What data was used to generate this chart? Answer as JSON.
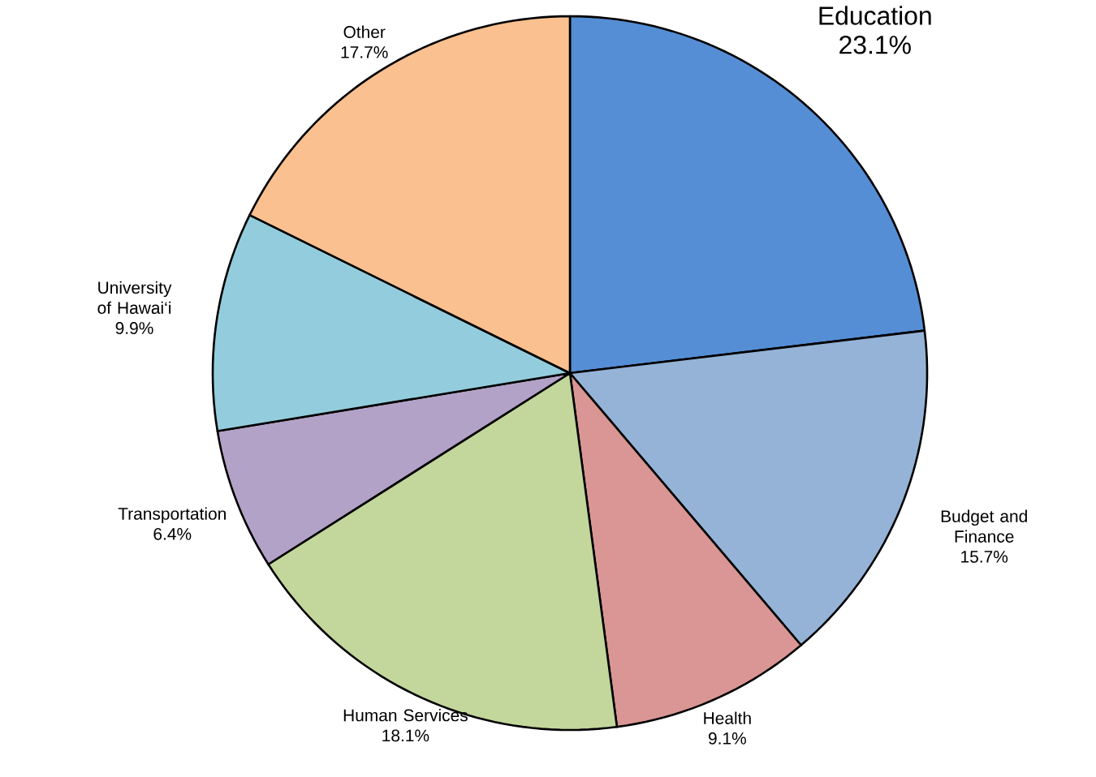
{
  "chart_data": {
    "type": "pie",
    "categories": [
      "Education",
      "Budget and Finance",
      "Health",
      "Human Services",
      "Transportation",
      "University of Hawai‘i",
      "Other"
    ],
    "values": [
      23.1,
      15.7,
      9.1,
      18.1,
      6.4,
      9.9,
      17.7
    ],
    "value_labels": [
      "23.1%",
      "15.7%",
      "9.1%",
      "18.1%",
      "6.4%",
      "9.9%",
      "17.7%"
    ],
    "colors": [
      "#558ed5",
      "#95b3d7",
      "#d99694",
      "#c3d69b",
      "#b3a2c7",
      "#93cddd",
      "#fac090"
    ]
  }
}
